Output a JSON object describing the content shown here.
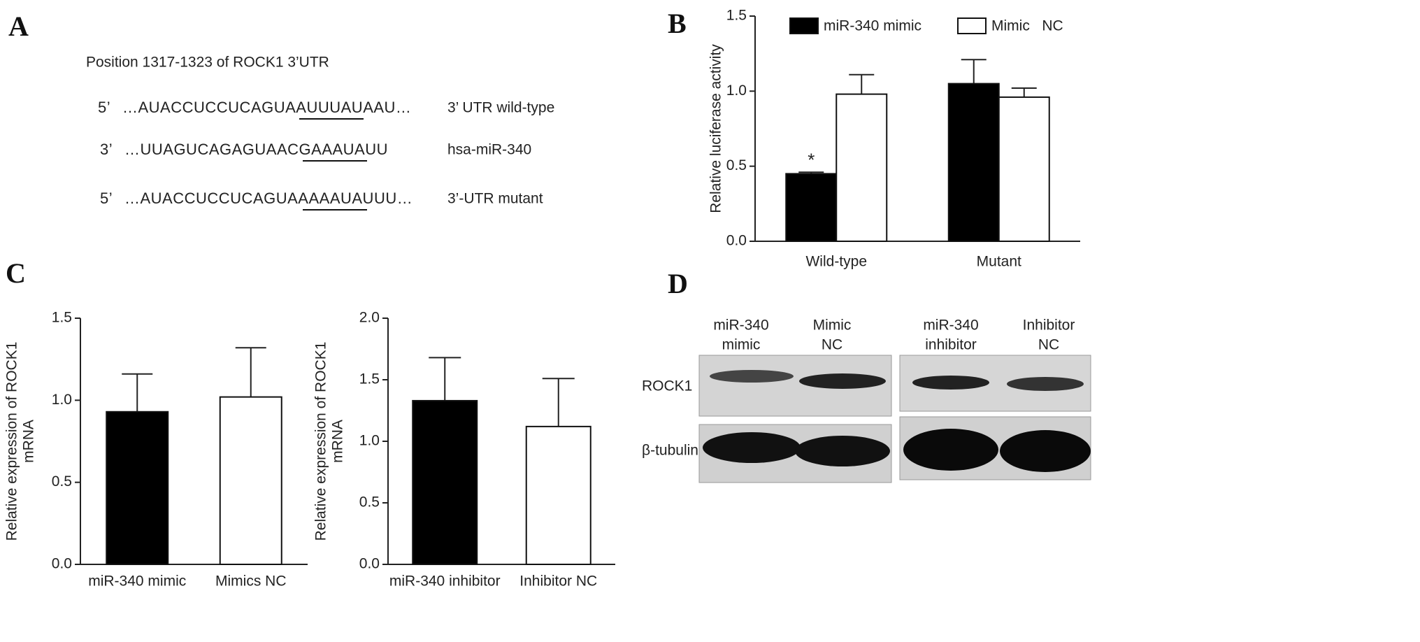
{
  "panel_labels": [
    "A",
    "B",
    "C",
    "D"
  ],
  "sequence": {
    "title": "Position 1317-1323 of ROCK1 3’UTR",
    "rows": [
      {
        "end": "5’",
        "seq": "…AUACCUCCUCAGUAAUUUAUAAU…",
        "label": "3’ UTR wild-type"
      },
      {
        "end": "3’",
        "seq": "…UUAGUCAGAGUAACGAAAUAUU",
        "label": "hsa-miR-340"
      },
      {
        "end": "5’",
        "seq": "…AUACCUCCUCAGUAAAAAUAUUU…",
        "label": "3’-UTR mutant"
      }
    ]
  },
  "chart_data": [
    {
      "type": "bar",
      "ylabel": [
        "Relative luciferase activity"
      ],
      "categories": [
        "Wild-type",
        "Mutant"
      ],
      "series": [
        {
          "name": "miR-340 mimic",
          "color": "#000000",
          "values": [
            0.45,
            1.05
          ],
          "errors": [
            0.01,
            0.16
          ]
        },
        {
          "name": "Mimic   NC",
          "color": "#ffffff",
          "values": [
            0.98,
            0.96
          ],
          "errors": [
            0.13,
            0.06
          ]
        }
      ],
      "annotations": [
        "*"
      ],
      "ylim": [
        0,
        1.5
      ],
      "yticks": [
        {
          "value": 0,
          "label": "0.0"
        },
        0.5,
        {
          "value": 1,
          "label": "1.0"
        },
        1.5
      ]
    },
    {
      "type": "bar",
      "ylabel": [
        "Relative expression of ROCK1",
        "mRNA"
      ],
      "categories": [
        "miR-340 mimic",
        "Mimics NC"
      ],
      "values": [
        0.93,
        1.02
      ],
      "errors": [
        0.23,
        0.3
      ],
      "colors": [
        "#000000",
        "#ffffff"
      ],
      "ylim": [
        0,
        1.5
      ],
      "yticks": [
        {
          "value": 0,
          "label": "0.0"
        },
        0.5,
        {
          "value": 1,
          "label": "1.0"
        },
        1.5
      ]
    },
    {
      "type": "bar",
      "ylabel": [
        "Relative expression of ROCK1",
        "mRNA"
      ],
      "categories": [
        "miR-340 inhibitor",
        "Inhibitor NC"
      ],
      "values": [
        1.33,
        1.12
      ],
      "errors": [
        0.35,
        0.39
      ],
      "colors": [
        "#000000",
        "#ffffff"
      ],
      "ylim": [
        0,
        2
      ],
      "yticks": [
        {
          "value": 0,
          "label": "0.0"
        },
        0.5,
        {
          "value": 1,
          "label": "1.0"
        },
        1.5,
        {
          "value": 2,
          "label": "2.0"
        }
      ]
    }
  ],
  "blot": {
    "lanes": [
      [
        "miR-340",
        "mimic"
      ],
      [
        "Mimic",
        "NC"
      ],
      [
        "miR-340",
        "inhibitor"
      ],
      [
        "Inhibitor",
        "NC"
      ]
    ],
    "proteins": [
      "ROCK1",
      "β-tubulin"
    ]
  }
}
